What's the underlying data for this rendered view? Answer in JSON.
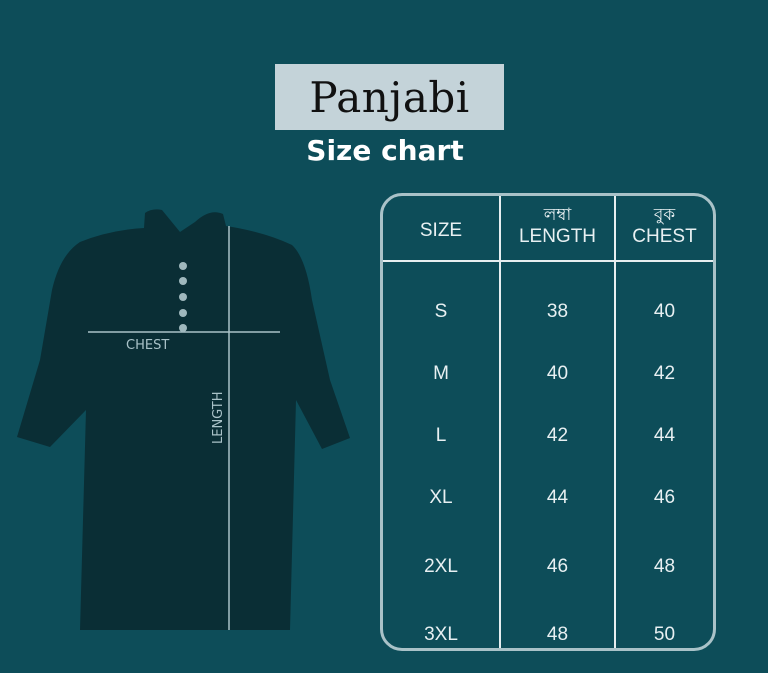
{
  "title": "Panjabi",
  "subtitle": "Size chart",
  "diagram": {
    "chest_label": "CHEST",
    "length_label": "LENGTH",
    "button_count": 5
  },
  "colors": {
    "background": "#0d4d59",
    "garment": "#0a2e35",
    "title_box": "#c4d3d9",
    "text": "#e8f0f2"
  },
  "table": {
    "headers": [
      {
        "bengali": "",
        "english": "SIZE"
      },
      {
        "bengali": "লম্বা",
        "english": "LENGTH"
      },
      {
        "bengali": "বুক",
        "english": "CHEST"
      }
    ],
    "rows": [
      [
        "S",
        "38",
        "40"
      ],
      [
        "M",
        "40",
        "42"
      ],
      [
        "L",
        "42",
        "44"
      ],
      [
        "XL",
        "44",
        "46"
      ],
      [
        "2XL",
        "46",
        "48"
      ],
      [
        "3XL",
        "48",
        "50"
      ]
    ]
  }
}
